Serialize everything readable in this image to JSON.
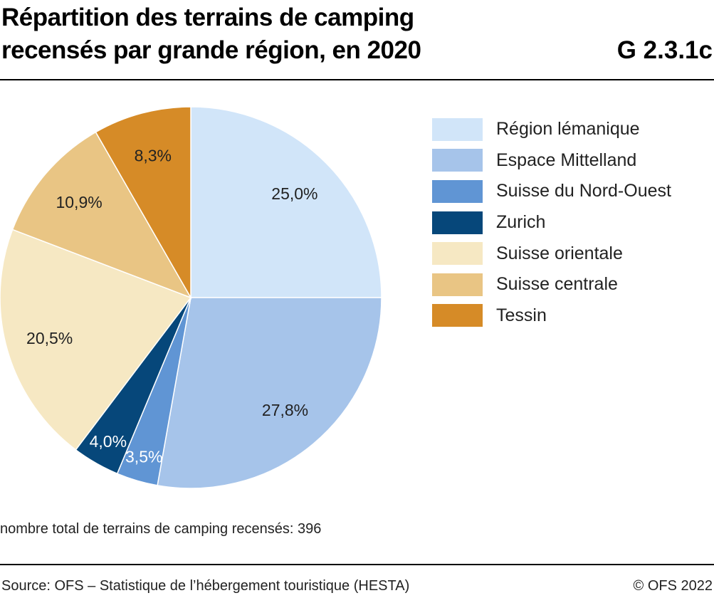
{
  "chart_data": {
    "type": "pie",
    "title": "Répartition des terrains de camping recensés par grande région, en 2020",
    "code": "G 2.3.1c",
    "start": "top",
    "direction": "clockwise",
    "legend_position": "right",
    "slices": [
      {
        "name": "Région lémanique",
        "value": 25.0,
        "label": "25,0%",
        "color": "#d1e5f9"
      },
      {
        "name": "Espace Mittelland",
        "value": 27.8,
        "label": "27,8%",
        "color": "#a6c4ea"
      },
      {
        "name": "Suisse du Nord-Ouest",
        "value": 3.5,
        "label": "3,5%",
        "color": "#6095d4",
        "label_color": "#ffffff"
      },
      {
        "name": "Zurich",
        "value": 4.0,
        "label": "4,0%",
        "color": "#06477a",
        "label_color": "#ffffff"
      },
      {
        "name": "Suisse orientale",
        "value": 20.5,
        "label": "20,5%",
        "color": "#f6e8c3"
      },
      {
        "name": "Suisse centrale",
        "value": 10.9,
        "label": "10,9%",
        "color": "#e9c584"
      },
      {
        "name": "Tessin",
        "value": 8.3,
        "label": "8,3%",
        "color": "#d68b27"
      }
    ],
    "note": "nombre total de terrains de camping recensés: 396",
    "source": "Source: OFS – Statistique de l’hébergement touristique (HESTA)",
    "copyright": "© OFS 2022"
  }
}
